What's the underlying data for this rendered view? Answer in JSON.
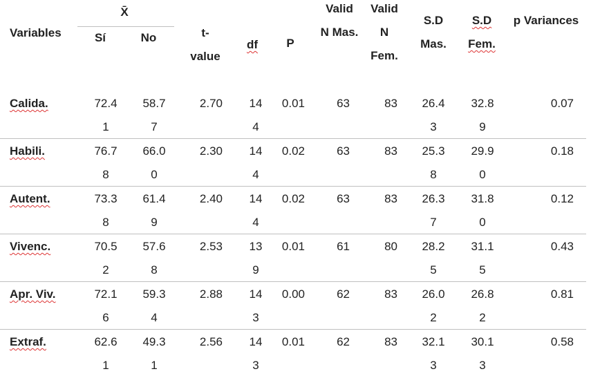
{
  "header": {
    "variables": "Variables",
    "mean": "X̄",
    "si": "Sí",
    "no": "No",
    "t_value": "t-value",
    "df": "df",
    "p": "P",
    "valid_n_mas": "Valid N Mas.",
    "valid_n_fem": "Valid N Fem.",
    "sd_mas": "S.D Mas.",
    "sd_fem": "S.D Fem.",
    "p_variances": "p Variances"
  },
  "rows": [
    [
      "Calida.",
      "72.41",
      "58.77",
      "2.70",
      "144",
      "0.01",
      "63",
      "83",
      "26.43",
      "32.89",
      "0.07"
    ],
    [
      "Habili.",
      "76.78",
      "66.00",
      "2.30",
      "144",
      "0.02",
      "63",
      "83",
      "25.38",
      "29.90",
      "0.18"
    ],
    [
      "Autent.",
      "73.38",
      "61.49",
      "2.40",
      "144",
      "0.02",
      "63",
      "83",
      "26.37",
      "31.80",
      "0.12"
    ],
    [
      "Vivenc.",
      "70.52",
      "57.68",
      "2.53",
      "139",
      "0.01",
      "61",
      "80",
      "28.25",
      "31.15",
      "0.43"
    ],
    [
      "Apr. Viv.",
      "72.16",
      "59.34",
      "2.88",
      "143",
      "0.00",
      "62",
      "83",
      "26.02",
      "26.82",
      "0.81"
    ],
    [
      "Extraf.",
      "62.61",
      "49.31",
      "2.56",
      "143",
      "0.01",
      "62",
      "83",
      "32.13",
      "30.13",
      "0.58"
    ]
  ]
}
